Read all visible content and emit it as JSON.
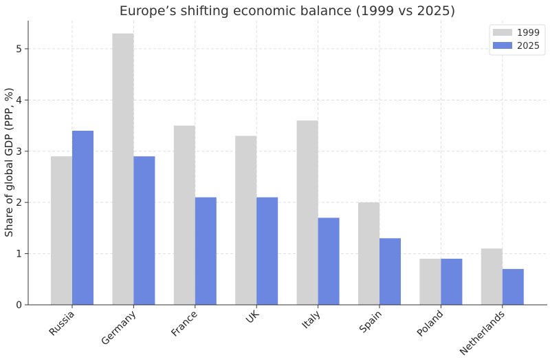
{
  "chart_data": {
    "type": "bar",
    "title": "Europe’s shifting economic balance (1999 vs 2025)",
    "xlabel": "",
    "ylabel": "Share of global GDP (PPP, %)",
    "ylim": [
      0,
      5.55
    ],
    "yticks": [
      0,
      1,
      2,
      3,
      4,
      5
    ],
    "grid": true,
    "legend_position": "top-right",
    "categories": [
      "Russia",
      "Germany",
      "France",
      "UK",
      "Italy",
      "Spain",
      "Poland",
      "Netherlands"
    ],
    "series": [
      {
        "name": "1999",
        "color": "#d3d3d3",
        "values": [
          2.9,
          5.3,
          3.5,
          3.3,
          3.6,
          2.0,
          0.9,
          1.1
        ]
      },
      {
        "name": "2025",
        "color": "#6b87e0",
        "values": [
          3.4,
          2.9,
          2.1,
          2.1,
          1.7,
          1.3,
          0.9,
          0.7
        ]
      }
    ]
  }
}
